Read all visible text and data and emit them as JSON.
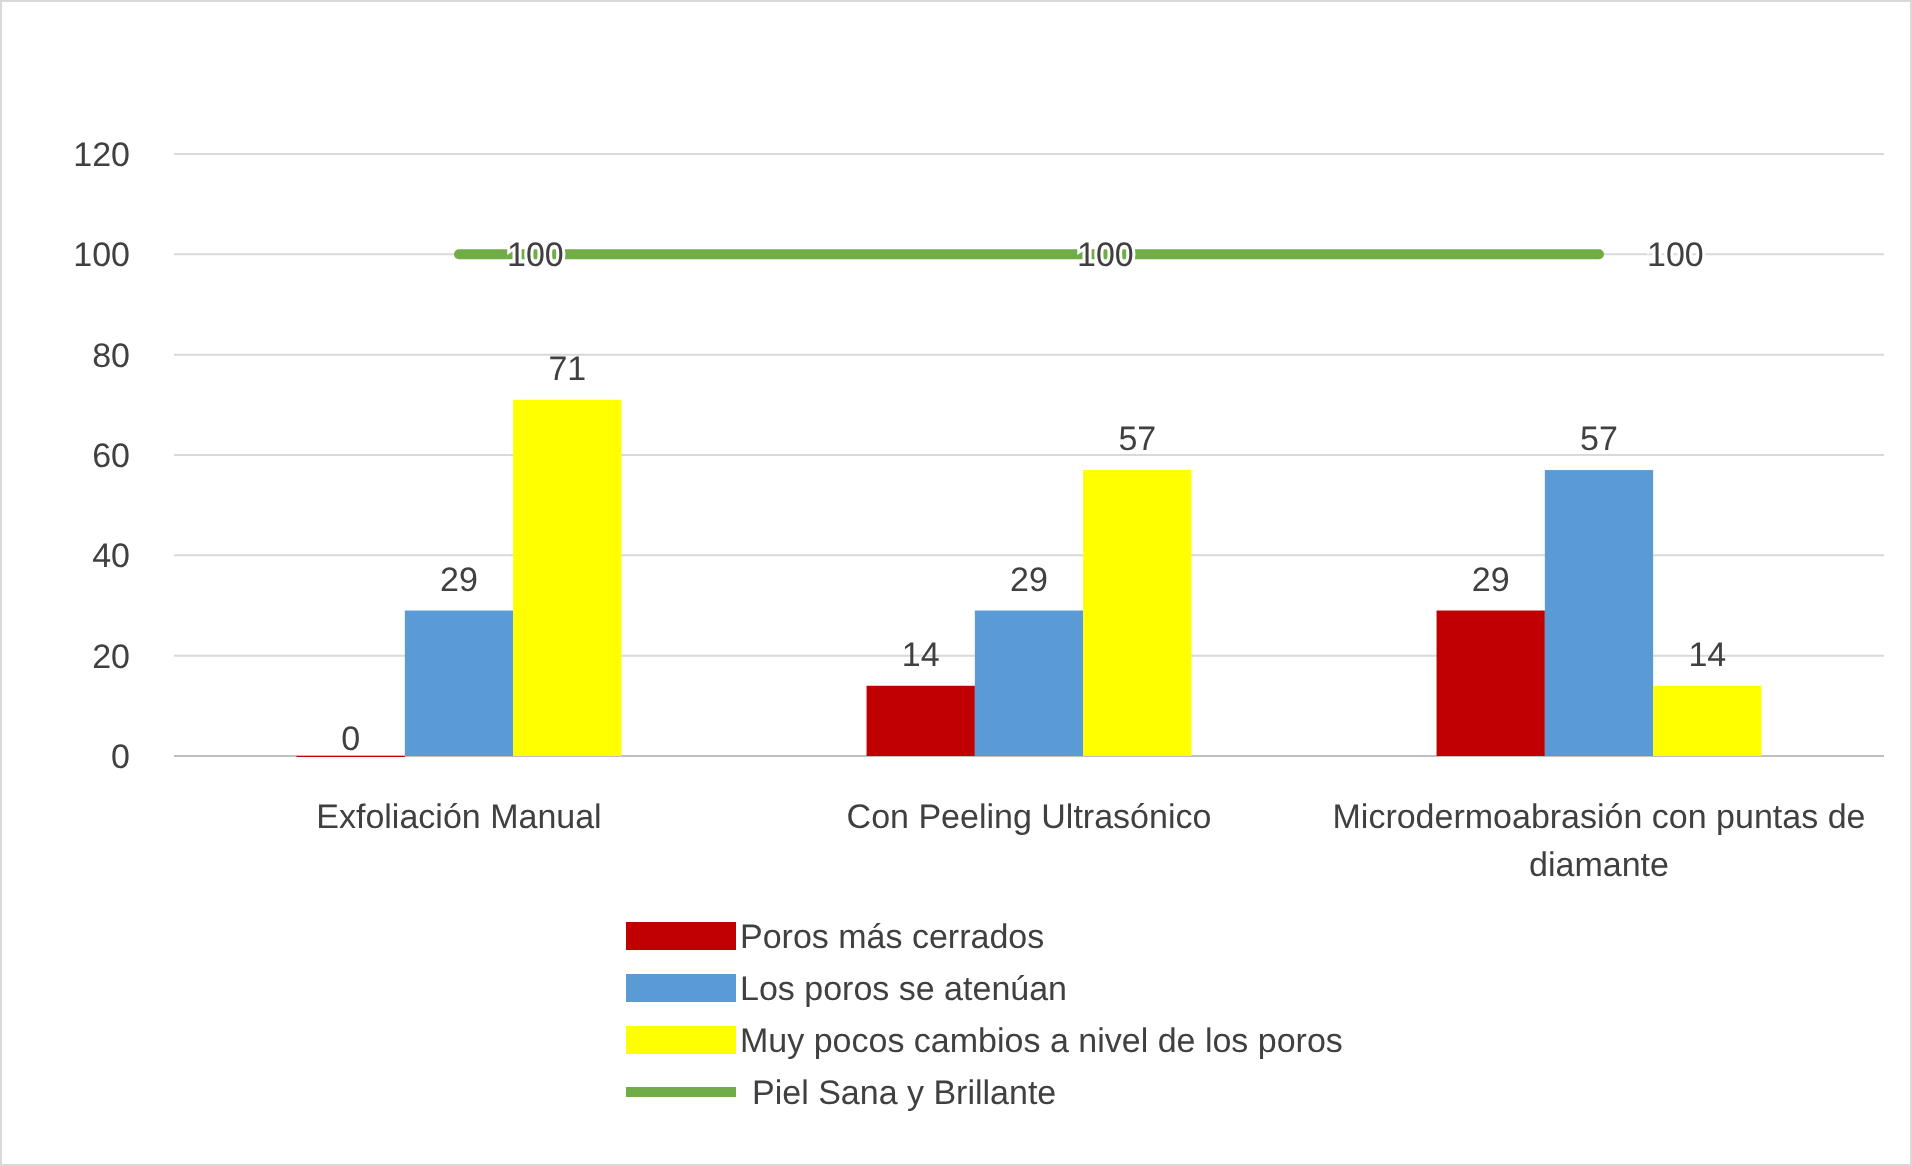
{
  "chart_data": {
    "type": "bar",
    "categories": [
      "Exfoliación Manual",
      "Con Peeling Ultrasónico",
      "Microdermoabrasión con puntas de diamante"
    ],
    "series": [
      {
        "name": "Poros más cerrados",
        "color": "#c00000",
        "values": [
          0,
          14,
          29
        ]
      },
      {
        "name": "Los poros se atenúan",
        "color": "#5b9bd5",
        "values": [
          29,
          29,
          57
        ]
      },
      {
        "name": "Muy pocos cambios a nivel de los poros",
        "color": "#ffff00",
        "values": [
          71,
          57,
          14
        ]
      },
      {
        "name": "Piel Sana y Brillante",
        "color": "#70ad47",
        "type": "line",
        "values": [
          100,
          100,
          100
        ]
      }
    ],
    "ylim": [
      0,
      120
    ],
    "yticks": [
      0,
      20,
      40,
      60,
      80,
      100,
      120
    ],
    "grid": "y",
    "legend": "bottom",
    "data_labels": true,
    "marker": "none"
  }
}
